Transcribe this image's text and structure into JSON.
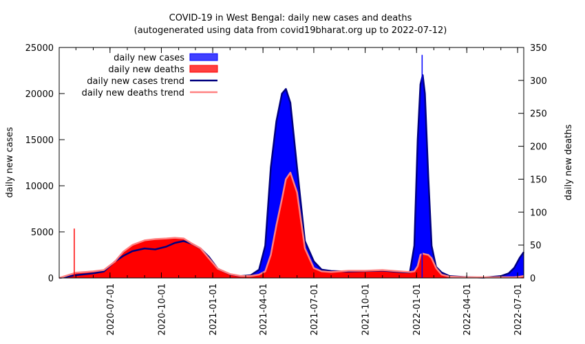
{
  "chart_data": {
    "type": "area",
    "title": "COVID-19 in West Bengal: daily new cases and deaths",
    "subtitle": "(autogenerated using data from covid19bharat.org up to 2022-07-12)",
    "ylabel_left": "daily new cases",
    "ylabel_right": "daily new deaths",
    "ylim_left": [
      0,
      25000
    ],
    "ylim_right": [
      0,
      350
    ],
    "yticks_left": [
      "0",
      "5000",
      "10000",
      "15000",
      "20000",
      "25000"
    ],
    "yticks_right": [
      "0",
      "50",
      "100",
      "150",
      "200",
      "250",
      "300",
      "350"
    ],
    "xlim": [
      "2020-04-01",
      "2022-07-12"
    ],
    "xticks": [
      "2020-07-01",
      "2020-10-01",
      "2021-01-01",
      "2021-04-01",
      "2021-07-01",
      "2021-10-01",
      "2022-01-01",
      "2022-04-01",
      "2022-07-01"
    ],
    "legend_position": "top-left",
    "series": [
      {
        "name": "daily new cases",
        "color": "#0000ff",
        "axis": "left",
        "dates": [
          "2020-04-01",
          "2020-05-01",
          "2020-06-01",
          "2020-06-20",
          "2020-07-10",
          "2020-07-25",
          "2020-08-10",
          "2020-09-01",
          "2020-09-20",
          "2020-10-10",
          "2020-10-25",
          "2020-11-10",
          "2020-11-25",
          "2020-12-10",
          "2020-12-25",
          "2021-01-10",
          "2021-02-01",
          "2021-02-20",
          "2021-03-10",
          "2021-03-25",
          "2021-04-05",
          "2021-04-15",
          "2021-04-25",
          "2021-05-05",
          "2021-05-12",
          "2021-05-20",
          "2021-06-01",
          "2021-06-15",
          "2021-07-01",
          "2021-07-15",
          "2021-08-01",
          "2021-09-01",
          "2021-10-01",
          "2021-11-01",
          "2021-12-01",
          "2021-12-20",
          "2021-12-28",
          "2022-01-03",
          "2022-01-08",
          "2022-01-12",
          "2022-01-16",
          "2022-01-22",
          "2022-01-28",
          "2022-02-05",
          "2022-02-15",
          "2022-03-01",
          "2022-04-01",
          "2022-05-01",
          "2022-06-01",
          "2022-06-15",
          "2022-06-25",
          "2022-07-05",
          "2022-07-12"
        ],
        "values": [
          0,
          300,
          500,
          700,
          1800,
          2400,
          2900,
          3200,
          3100,
          3400,
          3800,
          4000,
          3700,
          3200,
          2300,
          1000,
          400,
          200,
          300,
          900,
          3500,
          12000,
          17000,
          20000,
          20500,
          19000,
          12000,
          4000,
          1800,
          900,
          750,
          700,
          750,
          800,
          650,
          600,
          3500,
          15000,
          21000,
          22000,
          20000,
          11000,
          3500,
          1200,
          600,
          200,
          80,
          40,
          200,
          500,
          1100,
          2200,
          2800
        ]
      },
      {
        "name": "daily new deaths",
        "color": "#ff0000",
        "axis": "right",
        "dates": [
          "2020-04-01",
          "2020-05-01",
          "2020-06-01",
          "2020-06-20",
          "2020-07-10",
          "2020-07-25",
          "2020-08-10",
          "2020-09-01",
          "2020-09-20",
          "2020-10-10",
          "2020-10-25",
          "2020-11-10",
          "2020-11-25",
          "2020-12-10",
          "2020-12-25",
          "2021-01-10",
          "2021-02-01",
          "2021-02-20",
          "2021-03-10",
          "2021-03-25",
          "2021-04-05",
          "2021-04-15",
          "2021-04-25",
          "2021-05-05",
          "2021-05-12",
          "2021-05-20",
          "2021-06-01",
          "2021-06-15",
          "2021-07-01",
          "2021-07-15",
          "2021-08-01",
          "2021-09-01",
          "2021-10-01",
          "2021-11-01",
          "2021-12-01",
          "2021-12-20",
          "2021-12-28",
          "2022-01-03",
          "2022-01-08",
          "2022-01-12",
          "2022-01-16",
          "2022-01-22",
          "2022-01-28",
          "2022-02-05",
          "2022-02-15",
          "2022-03-01",
          "2022-04-01",
          "2022-05-01",
          "2022-06-01",
          "2022-06-15",
          "2022-06-25",
          "2022-07-05",
          "2022-07-12"
        ],
        "values": [
          0,
          8,
          10,
          12,
          25,
          40,
          50,
          57,
          59,
          60,
          61,
          60,
          52,
          45,
          30,
          14,
          6,
          3,
          3,
          5,
          10,
          35,
          80,
          120,
          150,
          160,
          130,
          45,
          15,
          10,
          9,
          11,
          11,
          12,
          10,
          9,
          10,
          18,
          35,
          37,
          36,
          35,
          30,
          15,
          5,
          2,
          1,
          1,
          1,
          1,
          1,
          2,
          3
        ]
      },
      {
        "name": "daily new cases trend",
        "color": "#00007f",
        "axis": "left",
        "dates": [
          "2020-04-01",
          "2020-05-01",
          "2020-06-01",
          "2020-06-20",
          "2020-07-10",
          "2020-07-25",
          "2020-08-10",
          "2020-09-01",
          "2020-09-20",
          "2020-10-10",
          "2020-10-25",
          "2020-11-10",
          "2020-11-25",
          "2020-12-10",
          "2020-12-25",
          "2021-01-10",
          "2021-02-01",
          "2021-02-20",
          "2021-03-10",
          "2021-03-25",
          "2021-04-05",
          "2021-04-15",
          "2021-04-25",
          "2021-05-05",
          "2021-05-12",
          "2021-05-20",
          "2021-06-01",
          "2021-06-15",
          "2021-07-01",
          "2021-07-15",
          "2021-08-01",
          "2021-09-01",
          "2021-10-01",
          "2021-11-01",
          "2021-12-01",
          "2021-12-20",
          "2021-12-28",
          "2022-01-03",
          "2022-01-08",
          "2022-01-12",
          "2022-01-16",
          "2022-01-22",
          "2022-01-28",
          "2022-02-05",
          "2022-02-15",
          "2022-03-01",
          "2022-04-01",
          "2022-05-01",
          "2022-06-01",
          "2022-06-15",
          "2022-06-25",
          "2022-07-05",
          "2022-07-12"
        ],
        "values": [
          0,
          300,
          500,
          700,
          1800,
          2400,
          2900,
          3200,
          3100,
          3400,
          3800,
          4000,
          3700,
          3200,
          2300,
          1000,
          400,
          200,
          300,
          900,
          3500,
          12000,
          17000,
          20000,
          20500,
          19000,
          12000,
          4000,
          1800,
          900,
          750,
          700,
          750,
          800,
          650,
          600,
          3500,
          15000,
          21000,
          22000,
          20000,
          11000,
          3500,
          1200,
          600,
          200,
          80,
          40,
          200,
          500,
          1100,
          2200,
          2800
        ]
      },
      {
        "name": "daily new deaths trend",
        "color": "#ff8080",
        "axis": "right",
        "dates": [
          "2020-04-01",
          "2020-05-01",
          "2020-06-01",
          "2020-06-20",
          "2020-07-10",
          "2020-07-25",
          "2020-08-10",
          "2020-09-01",
          "2020-09-20",
          "2020-10-10",
          "2020-10-25",
          "2020-11-10",
          "2020-11-25",
          "2020-12-10",
          "2020-12-25",
          "2021-01-10",
          "2021-02-01",
          "2021-02-20",
          "2021-03-10",
          "2021-03-25",
          "2021-04-05",
          "2021-04-15",
          "2021-04-25",
          "2021-05-05",
          "2021-05-12",
          "2021-05-20",
          "2021-06-01",
          "2021-06-15",
          "2021-07-01",
          "2021-07-15",
          "2021-08-01",
          "2021-09-01",
          "2021-10-01",
          "2021-11-01",
          "2021-12-01",
          "2021-12-20",
          "2021-12-28",
          "2022-01-03",
          "2022-01-08",
          "2022-01-12",
          "2022-01-16",
          "2022-01-22",
          "2022-01-28",
          "2022-02-05",
          "2022-02-15",
          "2022-03-01",
          "2022-04-01",
          "2022-05-01",
          "2022-06-01",
          "2022-06-15",
          "2022-06-25",
          "2022-07-05",
          "2022-07-12"
        ],
        "values": [
          0,
          8,
          10,
          12,
          25,
          40,
          50,
          57,
          59,
          60,
          61,
          60,
          52,
          45,
          30,
          14,
          6,
          3,
          3,
          5,
          10,
          35,
          80,
          120,
          150,
          160,
          130,
          45,
          15,
          10,
          9,
          11,
          11,
          12,
          10,
          9,
          10,
          18,
          35,
          37,
          36,
          35,
          30,
          15,
          5,
          2,
          1,
          1,
          1,
          1,
          1,
          2,
          3
        ]
      }
    ],
    "annotations": [
      {
        "date": "2020-04-28",
        "series": "daily new deaths",
        "value": 75
      },
      {
        "date": "2022-01-11",
        "series": "daily new cases",
        "value": 24200
      }
    ]
  }
}
